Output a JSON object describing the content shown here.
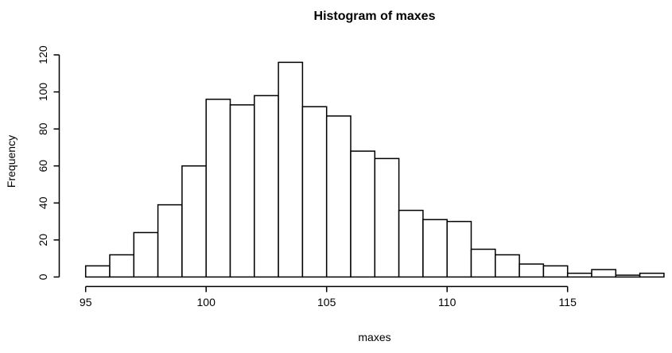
{
  "chart_data": {
    "type": "bar",
    "subtype": "histogram",
    "title": "Histogram of maxes",
    "xlabel": "maxes",
    "ylabel": "Frequency",
    "bin_start": 95,
    "bin_width": 1,
    "counts": [
      6,
      12,
      24,
      39,
      60,
      96,
      93,
      98,
      116,
      92,
      87,
      68,
      64,
      36,
      31,
      30,
      15,
      12,
      7,
      6,
      2,
      4,
      1,
      2
    ],
    "x_ticks": [
      95,
      100,
      105,
      110,
      115
    ],
    "y_ticks": [
      0,
      20,
      40,
      60,
      80,
      100,
      120
    ],
    "xlim": [
      95,
      119
    ],
    "ylim": [
      0,
      120
    ],
    "grid": false,
    "legend": "none",
    "bar_fill": "#ffffff",
    "bar_stroke": "#000000",
    "axis_color": "#000000",
    "text_color": "#000000",
    "background": "#ffffff"
  }
}
